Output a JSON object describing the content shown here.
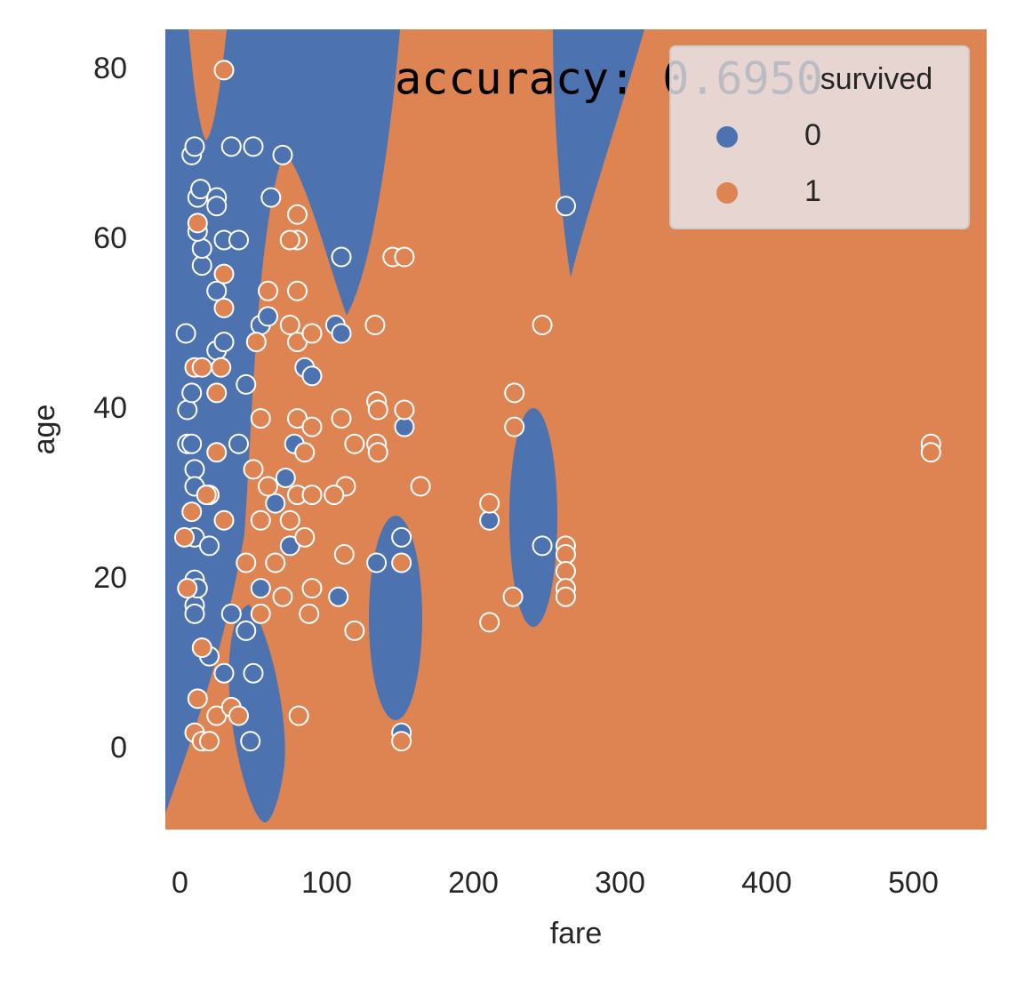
{
  "chart_data": {
    "type": "scatter",
    "title": "accuracy: 0.6950",
    "x_label": "fare",
    "y_label": "age",
    "legend_title": "survived",
    "legend_position": "upper right",
    "grid": false,
    "region_colors": {
      "0": "#4c72b0",
      "1": "#dd8452"
    },
    "xlim": [
      -10,
      550
    ],
    "ylim": [
      -9.4,
      84.8
    ],
    "xticks": [
      0,
      100,
      200,
      300,
      400,
      500
    ],
    "yticks": [
      0,
      20,
      40,
      60,
      80
    ],
    "series": [
      {
        "name": "0",
        "color": "#4c72b0",
        "x": [
          263,
          211,
          247,
          110,
          106,
          110,
          153,
          134,
          151,
          151,
          108,
          4,
          8,
          10,
          12,
          14,
          25,
          25,
          35,
          50,
          70,
          62,
          5,
          5,
          8,
          8,
          10,
          10,
          10,
          10,
          10,
          10,
          12,
          20,
          20,
          25,
          30,
          40,
          45,
          48,
          50,
          45,
          30,
          35,
          55,
          65,
          72,
          75,
          78,
          85,
          90,
          25,
          15,
          15,
          12,
          30,
          40,
          55,
          60
        ],
        "y": [
          64,
          27,
          24,
          58,
          50,
          49,
          38,
          22,
          25,
          2,
          18,
          49,
          70,
          71,
          65,
          66,
          65,
          64,
          71,
          71,
          70,
          65,
          40,
          36,
          42,
          36,
          33,
          31,
          25,
          20,
          17,
          16,
          19,
          24,
          11,
          47,
          48,
          36,
          43,
          1,
          9,
          14,
          9,
          16,
          19,
          29,
          32,
          24,
          36,
          45,
          44,
          54,
          57,
          59,
          61,
          60,
          60,
          50,
          51
        ]
      },
      {
        "name": "1",
        "color": "#dd8452",
        "x": [
          512,
          512,
          30,
          247,
          228,
          228,
          211,
          211,
          227,
          263,
          263,
          263,
          263,
          263,
          145,
          153,
          133,
          134,
          135,
          134,
          135,
          153,
          164,
          151,
          151,
          110,
          119,
          113,
          105,
          112,
          119,
          81,
          3,
          5,
          12,
          10,
          15,
          25,
          25,
          30,
          30,
          20,
          15,
          12,
          10,
          15,
          20,
          25,
          35,
          40,
          45,
          55,
          55,
          60,
          65,
          70,
          75,
          80,
          85,
          90,
          90,
          85,
          80,
          90,
          80,
          80,
          75,
          80,
          75,
          80,
          90,
          60,
          55,
          52,
          30,
          28,
          18,
          8,
          50,
          88
        ],
        "y": [
          36,
          35,
          80,
          50,
          42,
          38,
          29,
          15,
          18,
          24,
          23,
          21,
          19,
          18,
          58,
          58,
          50,
          41,
          40,
          36,
          35,
          40,
          31,
          22,
          1,
          39,
          36,
          31,
          30,
          23,
          14,
          4,
          25,
          19,
          62,
          45,
          45,
          42,
          35,
          52,
          27,
          30,
          12,
          6,
          2,
          1,
          1,
          4,
          5,
          4,
          22,
          16,
          27,
          31,
          22,
          18,
          27,
          30,
          25,
          19,
          30,
          35,
          39,
          38,
          63,
          60,
          60,
          54,
          50,
          48,
          49,
          54,
          39,
          48,
          56,
          45,
          30,
          28,
          33,
          16
        ]
      }
    ]
  }
}
